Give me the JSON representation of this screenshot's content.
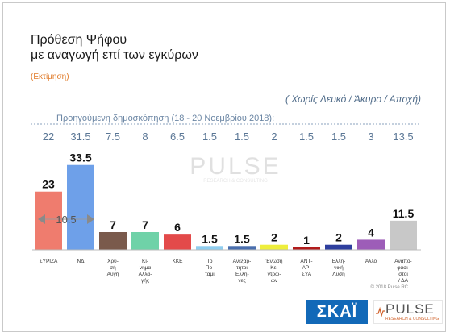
{
  "header": {
    "title_line1": "Πρόθεση Ψήφου",
    "title_line2": "με αναγωγή επί των εγκύρων",
    "subtitle": "(Εκτίμηση)",
    "note": "( Χωρίς Λευκό / Άκυρο / Αποχή)",
    "previous_label": "Προηγούμενη δημοσκόπηση (18 - 20 Νοεμβρίου 2018):"
  },
  "chart_data": {
    "type": "bar",
    "categories": [
      "ΣΥΡΙΖΑ",
      "ΝΔ",
      "Χρυ-σή Αυγή",
      "Κί-νημα Αλλα-γής",
      "ΚΚΕ",
      "Το Πο-τάμι",
      "Ανεξάρ-τητοι Έλλη-νες",
      "Ένωση Κε-ντρώ-ων",
      "ΑΝΤ-ΑΡ-ΣΥΑ",
      "Ελλη-νική Λύση",
      "Άλλο",
      "Αναπο-φάσι-στοι / ΔΑ"
    ],
    "category_lines": [
      [
        "ΣΥΡΙΖΑ"
      ],
      [
        "ΝΔ"
      ],
      [
        "Χρυ-",
        "σή",
        "Αυγή"
      ],
      [
        "Κί-",
        "νημα",
        "Αλλα-",
        "γής"
      ],
      [
        "ΚΚΕ"
      ],
      [
        "Το",
        "Πο-",
        "τάμι"
      ],
      [
        "Ανεξάρ-",
        "τητοι",
        "Έλλη-",
        "νες"
      ],
      [
        "Ένωση",
        "Κε-",
        "ντρώ-",
        "ων"
      ],
      [
        "ΑΝΤ-",
        "ΑΡ-",
        "ΣΥΑ"
      ],
      [
        "Ελλη-",
        "νική",
        "Λύση"
      ],
      [
        "Άλλο"
      ],
      [
        "Αναπο-",
        "φάσι-",
        "στοι",
        "/ ΔΑ"
      ]
    ],
    "values": [
      23,
      33.5,
      7,
      7,
      6,
      1.5,
      1.5,
      2,
      1,
      2,
      4,
      11.5
    ],
    "value_labels": [
      "23",
      "33.5",
      "7",
      "7",
      "6",
      "1.5",
      "1.5",
      "2",
      "1",
      "2",
      "4",
      "11.5"
    ],
    "previous_values": [
      "22",
      "31.5",
      "7.5",
      "8",
      "6.5",
      "1.5",
      "1.5",
      "2",
      "1.5",
      "1.5",
      "3",
      "13.5"
    ],
    "colors": [
      "#ef7c6e",
      "#6ea0e9",
      "#7a5a4c",
      "#6fd2a8",
      "#e34a4a",
      "#8fcdee",
      "#4a6fae",
      "#eeee3c",
      "#b21c1c",
      "#2e3f9e",
      "#9d5db8",
      "#c8c8c8"
    ],
    "ylim": [
      0,
      35
    ],
    "gap_annotation": "10.5",
    "grid": false
  },
  "watermark": {
    "name": "PULSE",
    "tagline": "RESEARCH & CONSULTING"
  },
  "footer": {
    "copyright": "© 2018 Pulse RC",
    "skai_logo": "ΣΚΑΪ",
    "pulse_logo": "PULSE",
    "pulse_tagline": "RESEARCH & CONSULTING"
  }
}
